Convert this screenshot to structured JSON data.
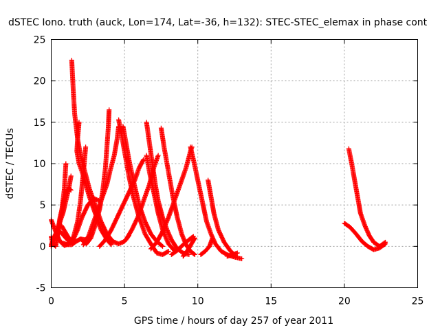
{
  "chart_data": {
    "type": "scatter",
    "title": "dSTEC Iono. truth (auck, Lon=174, Lat=-36, h=132): STEC-STEC_elemax in phase cont",
    "xlabel": "GPS time / hours of day 257 of year 2011",
    "ylabel": "dSTEC  / TECUs",
    "xlim": [
      0,
      25
    ],
    "ylim": [
      -5,
      25
    ],
    "xticks": [
      "0",
      "5",
      "10",
      "15",
      "20",
      "25"
    ],
    "yticks": [
      "-5",
      "0",
      "5",
      "10",
      "15",
      "20",
      "25"
    ],
    "grid": true,
    "marker": "plus",
    "color": "#ff0000",
    "series": [
      {
        "points": [
          [
            0.0,
            1.2
          ],
          [
            0.1,
            0.3
          ],
          [
            0.3,
            0.0
          ],
          [
            0.5,
            2.0
          ],
          [
            0.7,
            4.0
          ],
          [
            0.9,
            7.0
          ],
          [
            1.0,
            10.0
          ]
        ]
      },
      {
        "points": [
          [
            0.0,
            3.2
          ],
          [
            0.3,
            1.8
          ],
          [
            0.6,
            0.6
          ],
          [
            0.9,
            0.1
          ],
          [
            1.2,
            0.3
          ],
          [
            1.5,
            1.0
          ],
          [
            1.8,
            3.0
          ],
          [
            2.0,
            5.5
          ],
          [
            2.2,
            9.0
          ],
          [
            2.35,
            12.0
          ]
        ]
      },
      {
        "points": [
          [
            0.4,
            1.2
          ],
          [
            0.6,
            3.5
          ],
          [
            0.8,
            5.0
          ],
          [
            1.0,
            6.5
          ],
          [
            1.2,
            7.0
          ],
          [
            1.35,
            6.8
          ]
        ]
      },
      {
        "points": [
          [
            0.0,
            0.0
          ],
          [
            0.2,
            1.0
          ],
          [
            0.5,
            2.5
          ],
          [
            0.8,
            4.0
          ],
          [
            1.0,
            5.5
          ],
          [
            1.2,
            7.0
          ],
          [
            1.35,
            8.5
          ]
        ]
      },
      {
        "points": [
          [
            1.4,
            22.5
          ],
          [
            1.5,
            19.0
          ],
          [
            1.6,
            16.0
          ],
          [
            1.8,
            13.0
          ],
          [
            2.0,
            11.0
          ],
          [
            2.3,
            9.0
          ],
          [
            2.6,
            7.0
          ],
          [
            3.0,
            5.0
          ],
          [
            3.4,
            3.0
          ],
          [
            3.8,
            1.5
          ],
          [
            4.2,
            0.6
          ],
          [
            4.6,
            0.3
          ],
          [
            5.0,
            0.6
          ],
          [
            5.3,
            1.3
          ]
        ]
      },
      {
        "points": [
          [
            1.9,
            15.0
          ],
          [
            1.8,
            13.0
          ],
          [
            1.75,
            11.5
          ],
          [
            1.9,
            10.0
          ],
          [
            2.2,
            8.5
          ],
          [
            2.6,
            6.0
          ],
          [
            3.0,
            4.0
          ],
          [
            3.4,
            2.0
          ],
          [
            3.8,
            0.8
          ],
          [
            4.1,
            0.2
          ]
        ]
      },
      {
        "points": [
          [
            0.7,
            2.5
          ],
          [
            1.2,
            1.0
          ],
          [
            1.6,
            0.5
          ],
          [
            2.0,
            0.9
          ],
          [
            2.4,
            0.3
          ],
          [
            2.7,
            1.0
          ],
          [
            3.0,
            2.5
          ],
          [
            3.3,
            4.5
          ],
          [
            3.5,
            6.5
          ],
          [
            3.7,
            9.5
          ],
          [
            3.8,
            12.0
          ],
          [
            3.9,
            14.5
          ],
          [
            3.95,
            16.5
          ]
        ]
      },
      {
        "points": [
          [
            0.0,
            0.2
          ],
          [
            0.3,
            1.5
          ],
          [
            0.6,
            1.8
          ],
          [
            0.9,
            1.2
          ],
          [
            1.2,
            0.6
          ],
          [
            1.5,
            0.8
          ],
          [
            1.8,
            2.0
          ],
          [
            2.1,
            3.5
          ],
          [
            2.5,
            5.0
          ],
          [
            2.9,
            5.8
          ],
          [
            3.3,
            5.5
          ]
        ]
      },
      {
        "points": [
          [
            0.8,
            0.4
          ],
          [
            1.1,
            0.2
          ],
          [
            1.4,
            0.2
          ],
          [
            1.7,
            0.6
          ],
          [
            2.0,
            0.9
          ],
          [
            2.3,
            0.8
          ],
          [
            2.5,
            1.0
          ],
          [
            2.8,
            1.5
          ]
        ]
      },
      {
        "points": [
          [
            2.2,
            0.2
          ],
          [
            2.5,
            1.0
          ],
          [
            2.8,
            2.5
          ],
          [
            3.1,
            4.0
          ],
          [
            3.5,
            6.0
          ],
          [
            3.8,
            7.5
          ],
          [
            4.0,
            9.0
          ],
          [
            4.3,
            11.0
          ],
          [
            4.5,
            13.0
          ],
          [
            4.6,
            14.5
          ]
        ]
      },
      {
        "points": [
          [
            4.6,
            15.3
          ],
          [
            4.8,
            13.5
          ],
          [
            5.0,
            11.5
          ],
          [
            5.3,
            8.5
          ],
          [
            5.6,
            6.0
          ],
          [
            6.0,
            3.5
          ],
          [
            6.4,
            1.5
          ],
          [
            6.8,
            0.3
          ],
          [
            7.2,
            -0.8
          ],
          [
            7.6,
            -1.0
          ],
          [
            8.0,
            -0.6
          ]
        ]
      },
      {
        "points": [
          [
            4.9,
            14.5
          ],
          [
            5.1,
            12.5
          ],
          [
            5.3,
            10.5
          ],
          [
            5.6,
            8.0
          ],
          [
            6.0,
            5.0
          ],
          [
            6.4,
            3.0
          ],
          [
            6.8,
            1.5
          ],
          [
            7.2,
            0.6
          ],
          [
            7.6,
            0.0
          ]
        ]
      },
      {
        "points": [
          [
            3.3,
            0.0
          ],
          [
            3.7,
            0.8
          ],
          [
            4.1,
            2.0
          ],
          [
            4.5,
            3.5
          ],
          [
            4.9,
            5.0
          ],
          [
            5.3,
            6.5
          ],
          [
            5.7,
            8.0
          ],
          [
            6.0,
            9.5
          ],
          [
            6.3,
            10.5
          ]
        ]
      },
      {
        "points": [
          [
            6.5,
            15.0
          ],
          [
            6.7,
            12.5
          ],
          [
            6.9,
            10.0
          ],
          [
            7.1,
            7.5
          ],
          [
            7.3,
            5.5
          ],
          [
            7.6,
            3.5
          ],
          [
            7.9,
            2.0
          ],
          [
            8.2,
            0.8
          ],
          [
            8.6,
            -0.3
          ],
          [
            9.0,
            -0.8
          ],
          [
            9.4,
            -1.0
          ]
        ]
      },
      {
        "points": [
          [
            6.5,
            11.0
          ],
          [
            6.7,
            9.0
          ],
          [
            7.0,
            6.5
          ],
          [
            7.3,
            4.0
          ],
          [
            7.6,
            2.0
          ],
          [
            8.0,
            0.3
          ],
          [
            8.4,
            -0.5
          ]
        ]
      },
      {
        "points": [
          [
            7.5,
            14.3
          ],
          [
            7.7,
            12.0
          ],
          [
            8.0,
            9.0
          ],
          [
            8.3,
            6.0
          ],
          [
            8.6,
            3.5
          ],
          [
            8.9,
            1.5
          ],
          [
            9.2,
            0.2
          ],
          [
            9.5,
            -0.6
          ],
          [
            9.8,
            -1.0
          ]
        ]
      },
      {
        "points": [
          [
            5.1,
            0.8
          ],
          [
            5.5,
            2.0
          ],
          [
            5.9,
            3.5
          ],
          [
            6.3,
            5.5
          ],
          [
            6.7,
            7.5
          ],
          [
            7.0,
            9.5
          ],
          [
            7.3,
            11.0
          ]
        ]
      },
      {
        "points": [
          [
            6.8,
            -0.3
          ],
          [
            7.2,
            0.5
          ],
          [
            7.6,
            1.8
          ],
          [
            8.0,
            3.5
          ],
          [
            8.4,
            5.5
          ],
          [
            8.8,
            7.5
          ],
          [
            9.2,
            9.5
          ],
          [
            9.5,
            11.5
          ],
          [
            9.6,
            12.0
          ]
        ]
      },
      {
        "points": [
          [
            9.5,
            12.0
          ],
          [
            9.7,
            10.5
          ],
          [
            10.0,
            8.0
          ],
          [
            10.3,
            5.5
          ],
          [
            10.6,
            3.0
          ],
          [
            10.9,
            1.5
          ],
          [
            11.2,
            0.3
          ],
          [
            11.6,
            -0.6
          ],
          [
            12.0,
            -1.0
          ],
          [
            12.5,
            -1.3
          ],
          [
            13.0,
            -1.5
          ]
        ]
      },
      {
        "points": [
          [
            10.7,
            8.0
          ],
          [
            10.9,
            6.0
          ],
          [
            11.1,
            4.0
          ],
          [
            11.4,
            2.0
          ],
          [
            11.8,
            0.5
          ],
          [
            12.2,
            -0.5
          ],
          [
            12.6,
            -1.2
          ]
        ]
      },
      {
        "points": [
          [
            8.2,
            -1.0
          ],
          [
            8.6,
            -0.5
          ],
          [
            9.0,
            0.2
          ],
          [
            9.4,
            0.8
          ],
          [
            9.7,
            1.2
          ]
        ]
      },
      {
        "points": [
          [
            9.0,
            -1.2
          ],
          [
            9.3,
            -0.5
          ],
          [
            9.6,
            0.4
          ],
          [
            9.8,
            1.0
          ]
        ]
      },
      {
        "points": [
          [
            10.2,
            -1.0
          ],
          [
            10.5,
            -0.6
          ],
          [
            10.8,
            0.0
          ],
          [
            11.0,
            1.0
          ]
        ]
      },
      {
        "points": [
          [
            12.0,
            -1.2
          ],
          [
            12.4,
            -1.0
          ],
          [
            12.7,
            -0.8
          ]
        ]
      },
      {
        "points": [
          [
            20.3,
            11.8
          ],
          [
            20.5,
            10.0
          ],
          [
            20.7,
            8.0
          ],
          [
            20.9,
            6.0
          ],
          [
            21.1,
            4.0
          ],
          [
            21.4,
            2.5
          ],
          [
            21.7,
            1.3
          ],
          [
            22.0,
            0.5
          ],
          [
            22.4,
            0.0
          ],
          [
            22.8,
            0.5
          ]
        ]
      },
      {
        "points": [
          [
            20.0,
            2.8
          ],
          [
            20.4,
            2.3
          ],
          [
            20.8,
            1.5
          ],
          [
            21.2,
            0.6
          ],
          [
            21.6,
            0.0
          ],
          [
            22.0,
            -0.4
          ],
          [
            22.4,
            -0.2
          ],
          [
            22.8,
            0.3
          ]
        ]
      }
    ]
  }
}
